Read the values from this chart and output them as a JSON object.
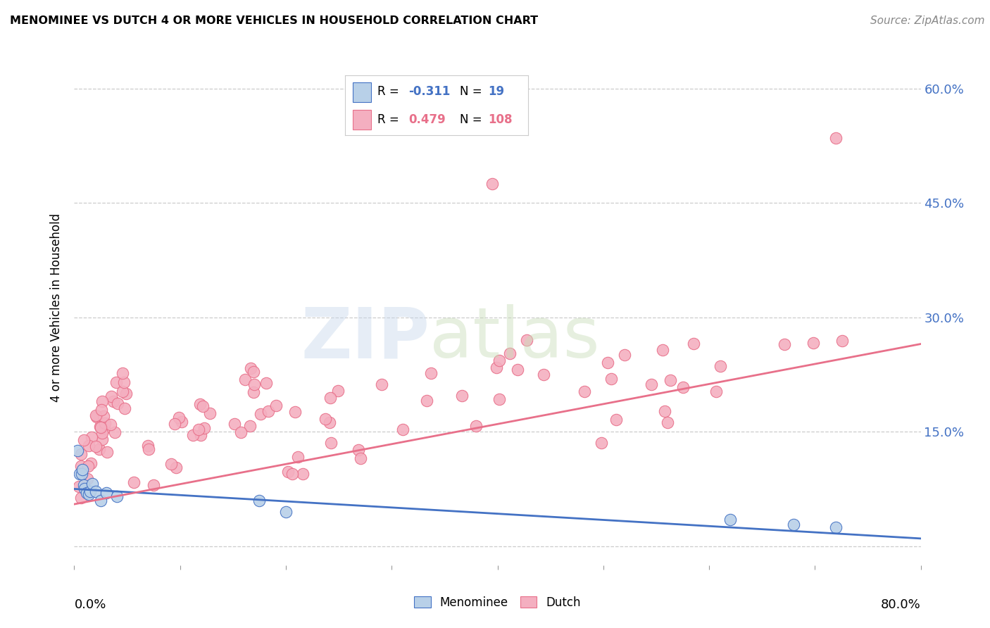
{
  "title": "MENOMINEE VS DUTCH 4 OR MORE VEHICLES IN HOUSEHOLD CORRELATION CHART",
  "source": "Source: ZipAtlas.com",
  "ylabel": "4 or more Vehicles in Household",
  "xlim": [
    0.0,
    0.8
  ],
  "ylim": [
    -0.025,
    0.65
  ],
  "yticks": [
    0.0,
    0.15,
    0.3,
    0.45,
    0.6
  ],
  "right_ytick_labels": [
    "",
    "15.0%",
    "30.0%",
    "45.0%",
    "60.0%"
  ],
  "menominee_R": -0.311,
  "menominee_N": 19,
  "dutch_R": 0.479,
  "dutch_N": 108,
  "menominee_color": "#b8d0e8",
  "dutch_color": "#f4afc0",
  "menominee_line_color": "#4472c4",
  "dutch_line_color": "#e8708a",
  "background_color": "#ffffff",
  "title_fontsize": 11.5,
  "source_fontsize": 11,
  "axis_label_fontsize": 12,
  "tick_fontsize": 13,
  "legend_fontsize": 12,
  "men_line_start_y": 0.075,
  "men_line_end_y": 0.01,
  "dutch_line_start_y": 0.055,
  "dutch_line_end_y": 0.265
}
